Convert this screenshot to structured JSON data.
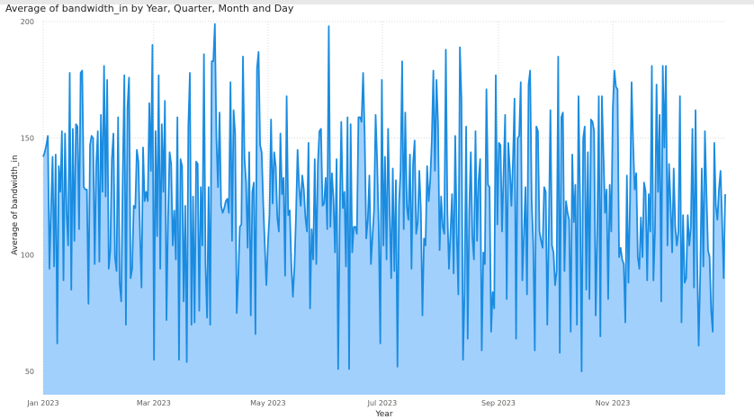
{
  "chart_data": {
    "type": "area",
    "title": "Average of bandwidth_in by Year, Quarter, Month and Day",
    "xlabel": "Year",
    "ylabel": "Average of bandwidth_in",
    "x_ticks": [
      "Jan 2023",
      "Mar 2023",
      "May 2023",
      "Jul 2023",
      "Sep 2023",
      "Nov 2023"
    ],
    "y_ticks": [
      50,
      100,
      150,
      200
    ],
    "ylim": [
      40,
      200
    ],
    "xlim": [
      "2023-01-01",
      "2023-12-31"
    ],
    "grid": true,
    "legend": "none",
    "colors": {
      "line": "#1a8ce0",
      "area": "#a2d0fd",
      "grid": "#d0d0d0"
    },
    "series": [
      {
        "values": [
          142,
          144,
          147,
          151,
          94,
          119,
          142,
          95,
          143,
          62,
          138,
          127,
          153,
          89,
          152,
          118,
          104,
          178,
          85,
          154,
          106,
          156,
          155,
          111,
          178,
          179,
          129,
          128,
          128,
          79,
          147,
          151,
          150,
          96,
          139,
          153,
          97,
          160,
          127,
          181,
          125,
          175,
          94,
          102,
          141,
          152,
          99,
          93,
          159,
          88,
          80,
          134,
          177,
          70,
          163,
          176,
          90,
          94,
          121,
          120,
          145,
          140,
          110,
          86,
          146,
          123,
          127,
          123,
          165,
          136,
          190,
          55,
          153,
          108,
          177,
          94,
          156,
          127,
          166,
          72,
          116,
          144,
          139,
          104,
          119,
          98,
          159,
          55,
          141,
          138,
          80,
          121,
          54,
          155,
          178,
          70,
          125,
          71,
          140,
          139,
          76,
          129,
          104,
          186,
          96,
          73,
          129,
          70,
          183,
          183,
          199,
          150,
          129,
          161,
          121,
          118,
          120,
          123,
          124,
          118,
          174,
          106,
          162,
          152,
          75,
          91,
          112,
          113,
          185,
          141,
          131,
          103,
          144,
          74,
          127,
          131,
          66,
          180,
          187,
          147,
          144,
          122,
          104,
          87,
          105,
          117,
          158,
          122,
          144,
          138,
          116,
          110,
          152,
          126,
          133,
          91,
          168,
          117,
          119,
          96,
          82,
          95,
          117,
          145,
          129,
          121,
          134,
          128,
          116,
          110,
          148,
          77,
          111,
          98,
          141,
          96,
          139,
          153,
          154,
          121,
          122,
          133,
          111,
          198,
          112,
          135,
          124,
          101,
          141,
          51,
          116,
          157,
          120,
          127,
          95,
          159,
          51,
          156,
          101,
          112,
          112,
          109,
          159,
          159,
          157,
          178,
          151,
          107,
          115,
          134,
          96,
          108,
          119,
          160,
          140,
          111,
          62,
          175,
          104,
          142,
          98,
          154,
          119,
          90,
          137,
          93,
          132,
          52,
          122,
          136,
          183,
          111,
          161,
          121,
          115,
          143,
          94,
          139,
          149,
          109,
          114,
          136,
          119,
          74,
          107,
          104,
          138,
          123,
          132,
          149,
          179,
          136,
          175,
          156,
          102,
          125,
          112,
          109,
          188,
          118,
          94,
          110,
          126,
          92,
          151,
          109,
          83,
          189,
          167,
          55,
          84,
          155,
          64,
          119,
          144,
          108,
          98,
          153,
          106,
          132,
          141,
          59,
          101,
          96,
          171,
          130,
          129,
          67,
          84,
          77,
          177,
          113,
          148,
          147,
          110,
          135,
          160,
          81,
          148,
          137,
          121,
          140,
          167,
          64,
          150,
          151,
          174,
          89,
          108,
          129,
          83,
          173,
          179,
          123,
          105,
          59,
          155,
          153,
          110,
          106,
          103,
          129,
          127,
          70,
          112,
          162,
          104,
          101,
          87,
          93,
          185,
          58,
          159,
          161,
          93,
          123,
          118,
          115,
          67,
          143,
          114,
          130,
          70,
          168,
          123,
          50,
          150,
          155,
          85,
          144,
          81,
          158,
          157,
          153,
          74,
          109,
          168,
          65,
          168,
          143,
          118,
          128,
          81,
          130,
          110,
          163,
          179,
          172,
          171,
          99,
          103,
          98,
          96,
          71,
          134,
          88,
          122,
          174,
          148,
          128,
          135,
          99,
          94,
          116,
          99,
          131,
          127,
          89,
          126,
          110,
          181,
          89,
          110,
          173,
          127,
          160,
          80,
          181,
          146,
          181,
          104,
          139,
          122,
          101,
          137,
          112,
          104,
          110,
          168,
          71,
          117,
          88,
          90,
          117,
          104,
          112,
          154,
          86,
          162,
          99,
          61,
          92,
          137,
          95,
          153,
          126,
          102,
          99,
          76,
          67,
          148,
          121,
          115,
          128,
          136,
          115,
          90,
          126
        ]
      }
    ]
  }
}
